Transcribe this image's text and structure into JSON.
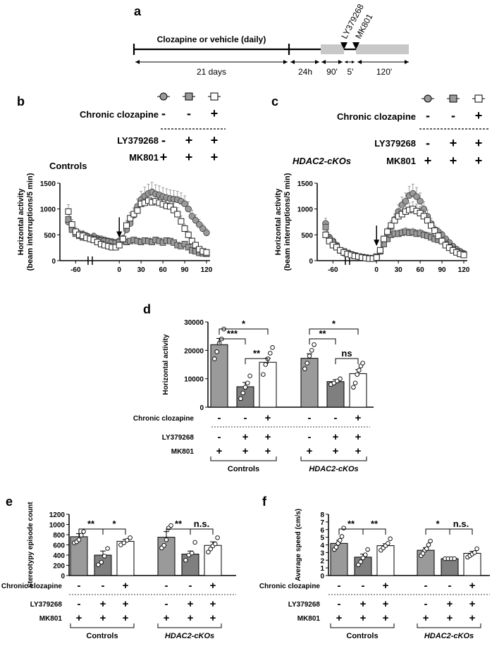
{
  "panel_labels": {
    "a": "a",
    "b": "b",
    "c": "c",
    "d": "d",
    "e": "e",
    "f": "f"
  },
  "timeline": {
    "clozapine_label": "Clozapine or vehicle (daily)",
    "durations": [
      "21 days",
      "24h",
      "90'",
      "5'",
      "120'"
    ],
    "drug1": "LY379268",
    "drug2": "MK801"
  },
  "treatment": {
    "chronic_clozapine": "Chronic clozapine",
    "ly": "LY379268",
    "mk": "MK801",
    "plus": "+",
    "minus": "-",
    "rows": [
      {
        "name": "Chronic clozapine",
        "signs": [
          "-",
          "-",
          "+"
        ]
      },
      {
        "name": "LY379268",
        "signs": [
          "-",
          "+",
          "+"
        ]
      },
      {
        "name": "MK801",
        "signs": [
          "+",
          "+",
          "+"
        ]
      }
    ]
  },
  "groups": {
    "controls": "Controls",
    "hdac": "HDAC2-cKOs"
  },
  "colors": {
    "gray": "#9a9a9a",
    "dark_gray": "#7f7f7f",
    "white": "#ffffff",
    "black": "#000000"
  },
  "chart_data": [
    {
      "type": "line",
      "panel": "b",
      "group": "Controls",
      "ylabel": "Horizontal activity\n(beam interruptions/5 min)",
      "ylim": [
        0,
        1500
      ],
      "yticks": [
        0,
        500,
        1000,
        1500
      ],
      "xticks": [
        -60,
        0,
        30,
        60,
        90,
        120
      ],
      "series": [
        {
          "name": "vehicle",
          "marker": "circle",
          "x": [
            -70,
            -65,
            -60,
            -55,
            -50,
            -45,
            -40,
            -35,
            -30,
            -25,
            -20,
            -15,
            -10,
            -5,
            0,
            5,
            10,
            15,
            20,
            25,
            30,
            35,
            40,
            45,
            50,
            55,
            60,
            65,
            70,
            75,
            80,
            85,
            90,
            95,
            100,
            105,
            110,
            115,
            120
          ],
          "y": [
            750,
            620,
            560,
            520,
            510,
            480,
            440,
            470,
            430,
            420,
            400,
            380,
            370,
            350,
            380,
            430,
            600,
            720,
            880,
            1050,
            1180,
            1250,
            1300,
            1330,
            1290,
            1270,
            1240,
            1220,
            1200,
            1190,
            1180,
            1150,
            1100,
            1000,
            860,
            780,
            700,
            620,
            540
          ]
        },
        {
          "name": "LY379268",
          "marker": "square",
          "x": [
            -70,
            -65,
            -60,
            -55,
            -50,
            -45,
            -40,
            -35,
            -30,
            -25,
            -20,
            -15,
            -10,
            -5,
            0,
            5,
            10,
            15,
            20,
            25,
            30,
            35,
            40,
            45,
            50,
            55,
            60,
            65,
            70,
            75,
            80,
            85,
            90,
            95,
            100,
            105,
            110,
            115,
            120
          ],
          "y": [
            800,
            600,
            520,
            480,
            450,
            470,
            440,
            420,
            400,
            390,
            380,
            370,
            350,
            340,
            360,
            380,
            360,
            380,
            400,
            380,
            360,
            390,
            380,
            360,
            400,
            380,
            350,
            390,
            380,
            350,
            300,
            280,
            320,
            260,
            200,
            180,
            150,
            140,
            130
          ]
        },
        {
          "name": "LY379268+clozapine",
          "marker": "square-open",
          "x": [
            -70,
            -65,
            -60,
            -55,
            -50,
            -45,
            -40,
            -35,
            -30,
            -25,
            -20,
            -15,
            -10,
            -5,
            0,
            5,
            10,
            15,
            20,
            25,
            30,
            35,
            40,
            45,
            50,
            55,
            60,
            65,
            70,
            75,
            80,
            85,
            90,
            95,
            100,
            105,
            110,
            115,
            120
          ],
          "y": [
            950,
            700,
            560,
            500,
            480,
            440,
            420,
            400,
            360,
            320,
            300,
            280,
            260,
            260,
            300,
            420,
            680,
            820,
            900,
            970,
            1100,
            1120,
            1160,
            1130,
            1150,
            1120,
            1090,
            1060,
            1050,
            980,
            900,
            760,
            620,
            500,
            380,
            300,
            220,
            180,
            160
          ]
        }
      ]
    },
    {
      "type": "line",
      "panel": "c",
      "group": "HDAC2-cKOs",
      "ylabel": "Horizontal activity\n(beam interruptions/5 min)",
      "ylim": [
        0,
        1500
      ],
      "yticks": [
        0,
        500,
        1000,
        1500
      ],
      "xticks": [
        -60,
        0,
        30,
        60,
        90,
        120
      ],
      "series": [
        {
          "name": "vehicle",
          "marker": "circle",
          "x": [
            -70,
            -65,
            -60,
            -55,
            -50,
            -45,
            -40,
            -35,
            -30,
            -25,
            -20,
            -15,
            -10,
            -5,
            0,
            5,
            10,
            15,
            20,
            25,
            30,
            35,
            40,
            45,
            50,
            55,
            60,
            65,
            70,
            75,
            80,
            85,
            90,
            95,
            100,
            105,
            110,
            115,
            120
          ],
          "y": [
            720,
            450,
            380,
            300,
            200,
            150,
            140,
            120,
            100,
            80,
            60,
            50,
            40,
            40,
            60,
            180,
            380,
            520,
            650,
            800,
            950,
            1080,
            1150,
            1260,
            1300,
            1240,
            1150,
            1000,
            860,
            720,
            600,
            560,
            500,
            420,
            350,
            280,
            220,
            180,
            140
          ]
        },
        {
          "name": "LY379268",
          "marker": "square",
          "x": [
            -70,
            -65,
            -60,
            -55,
            -50,
            -45,
            -40,
            -35,
            -30,
            -25,
            -20,
            -15,
            -10,
            -5,
            0,
            5,
            10,
            15,
            20,
            25,
            30,
            35,
            40,
            45,
            50,
            55,
            60,
            65,
            70,
            75,
            80,
            85,
            90,
            95,
            100,
            105,
            110,
            115,
            120
          ],
          "y": [
            650,
            420,
            350,
            280,
            200,
            180,
            150,
            120,
            100,
            80,
            70,
            60,
            50,
            50,
            80,
            180,
            320,
            420,
            500,
            520,
            520,
            540,
            560,
            540,
            550,
            520,
            530,
            500,
            480,
            450,
            420,
            400,
            380,
            320,
            260,
            220,
            180,
            150,
            120
          ]
        },
        {
          "name": "LY379268+clozapine",
          "marker": "square-open",
          "x": [
            -70,
            -65,
            -60,
            -55,
            -50,
            -45,
            -40,
            -35,
            -30,
            -25,
            -20,
            -15,
            -10,
            -5,
            0,
            5,
            10,
            15,
            20,
            25,
            30,
            35,
            40,
            45,
            50,
            55,
            60,
            65,
            70,
            75,
            80,
            85,
            90,
            95,
            100,
            105,
            110,
            115,
            120
          ],
          "y": [
            500,
            380,
            300,
            260,
            200,
            160,
            130,
            110,
            90,
            80,
            60,
            50,
            40,
            40,
            60,
            200,
            420,
            560,
            680,
            780,
            860,
            900,
            950,
            980,
            1000,
            960,
            920,
            860,
            780,
            680,
            580,
            480,
            380,
            300,
            250,
            200,
            160,
            130,
            110
          ]
        }
      ]
    },
    {
      "type": "bar",
      "panel": "d",
      "ylabel": "Horizontal activity",
      "ylim": [
        0,
        30000
      ],
      "yticks": [
        0,
        10000,
        20000,
        30000
      ],
      "groups": [
        "Controls",
        "HDAC2-cKOs"
      ],
      "values": [
        22000,
        7200,
        15800,
        17200,
        9000,
        11800
      ],
      "errors": [
        2200,
        1500,
        1500,
        1600,
        700,
        1400
      ],
      "points": [
        [
          17000,
          19500,
          22500,
          24000,
          27500
        ],
        [
          3000,
          5000,
          7000,
          8500,
          11000
        ],
        [
          11500,
          15000,
          17000,
          19000,
          21000
        ],
        [
          13500,
          15500,
          18000,
          20000,
          22000
        ],
        [
          8000,
          8500,
          9200,
          10000
        ],
        [
          7000,
          8500,
          11500,
          13000,
          14500,
          15500
        ]
      ],
      "significance": [
        {
          "bars": [
            0,
            1
          ],
          "label": "***"
        },
        {
          "bars": [
            0,
            2
          ],
          "label": "*"
        },
        {
          "bars": [
            1,
            2
          ],
          "label": "**"
        },
        {
          "bars": [
            3,
            4
          ],
          "label": "**"
        },
        {
          "bars": [
            3,
            5
          ],
          "label": "*"
        },
        {
          "bars": [
            4,
            5
          ],
          "label": "ns"
        }
      ]
    },
    {
      "type": "bar",
      "panel": "e",
      "ylabel": "Stereotypy episode count",
      "ylim": [
        0,
        1200
      ],
      "yticks": [
        0,
        200,
        400,
        600,
        800,
        1000,
        1200
      ],
      "groups": [
        "Controls",
        "HDAC2-cKOs"
      ],
      "values": [
        760,
        400,
        670,
        750,
        420,
        590
      ],
      "errors": [
        60,
        80,
        40,
        110,
        60,
        70
      ],
      "points": [
        [
          640,
          660,
          700,
          790,
          860
        ],
        [
          210,
          260,
          380,
          530
        ],
        [
          600,
          640,
          690,
          740
        ],
        [
          540,
          590,
          700,
          930,
          980
        ],
        [
          300,
          400,
          440,
          650
        ],
        [
          460,
          520,
          580,
          620,
          740
        ]
      ],
      "significance": [
        {
          "bars": [
            0,
            1
          ],
          "label": "**"
        },
        {
          "bars": [
            1,
            2
          ],
          "label": "*"
        },
        {
          "bars": [
            3,
            4
          ],
          "label": "**"
        },
        {
          "bars": [
            4,
            5
          ],
          "label": "n.s."
        }
      ]
    },
    {
      "type": "bar",
      "panel": "f",
      "ylabel": "Average speed (cm/s)",
      "ylim": [
        0,
        8
      ],
      "yticks": [
        0,
        1,
        2,
        3,
        4,
        5,
        6,
        7,
        8
      ],
      "groups": [
        "Controls",
        "HDAC2-cKOs"
      ],
      "values": [
        4.2,
        2.4,
        3.9,
        3.3,
        2.2,
        2.9
      ],
      "errors": [
        0.4,
        0.4,
        0.25,
        0.35,
        0.05,
        0.25
      ],
      "points": [
        [
          3.4,
          3.7,
          4.2,
          4.6,
          5.1,
          6.2
        ],
        [
          1.4,
          1.8,
          2.3,
          2.7,
          3.4
        ],
        [
          3.3,
          3.6,
          3.9,
          4.2,
          4.8
        ],
        [
          2.6,
          2.9,
          3.3,
          3.5,
          4.0,
          4.5
        ],
        [
          2.2,
          2.2,
          2.2,
          2.2
        ],
        [
          2.4,
          2.6,
          2.8,
          3.0,
          3.5
        ]
      ],
      "significance": [
        {
          "bars": [
            0,
            1
          ],
          "label": "**"
        },
        {
          "bars": [
            1,
            2
          ],
          "label": "**"
        },
        {
          "bars": [
            3,
            4
          ],
          "label": "*"
        },
        {
          "bars": [
            4,
            5
          ],
          "label": "n.s."
        }
      ]
    }
  ]
}
